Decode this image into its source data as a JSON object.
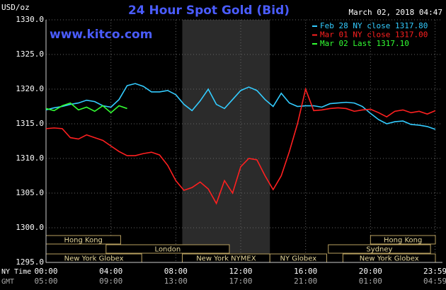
{
  "chart_data": {
    "type": "line",
    "title": "24 Hour Spot Gold (Bid)",
    "y_unit": "USD/oz",
    "site": "www.kitco.com",
    "timestamp": "March 02, 2018 04:47",
    "x_row_labels": [
      "NY Time",
      "GMT"
    ],
    "x": [
      0,
      0.5,
      1,
      1.5,
      2,
      2.5,
      3,
      3.5,
      4,
      4.5,
      5,
      5.5,
      6,
      6.5,
      7,
      7.5,
      8,
      8.5,
      9,
      9.5,
      10,
      10.5,
      11,
      11.5,
      12,
      12.5,
      13,
      13.5,
      14,
      14.5,
      15,
      15.5,
      16,
      16.5,
      17,
      17.5,
      18,
      18.5,
      19,
      19.5,
      20,
      20.5,
      21,
      21.5,
      22,
      22.5,
      23,
      23.5,
      24
    ],
    "series": [
      {
        "name": "Feb 28 NY close 1317.80",
        "color": "#33ccff",
        "values": [
          1317.0,
          1317.3,
          1317.5,
          1317.8,
          1318.0,
          1318.4,
          1318.2,
          1317.6,
          1317.4,
          1318.5,
          1320.5,
          1320.8,
          1320.4,
          1319.6,
          1319.6,
          1319.8,
          1319.2,
          1317.8,
          1316.9,
          1318.3,
          1320.0,
          1317.8,
          1317.2,
          1318.5,
          1319.8,
          1320.3,
          1319.8,
          1318.5,
          1317.5,
          1319.4,
          1318.0,
          1317.5,
          1317.6,
          1317.6,
          1317.4,
          1317.9,
          1318.0,
          1318.1,
          1318.0,
          1317.5,
          1316.5,
          1315.6,
          1315.0,
          1315.3,
          1315.4,
          1314.9,
          1314.8,
          1314.6,
          1314.2
        ]
      },
      {
        "name": "Mar 01 NY close 1317.00",
        "color": "#ff2020",
        "values": [
          1314.3,
          1314.4,
          1314.3,
          1313.0,
          1312.8,
          1313.4,
          1313.0,
          1312.6,
          1311.8,
          1311.0,
          1310.4,
          1310.4,
          1310.7,
          1310.9,
          1310.5,
          1309.0,
          1306.8,
          1305.4,
          1305.8,
          1306.6,
          1305.6,
          1303.5,
          1306.8,
          1305.0,
          1308.8,
          1310.0,
          1309.8,
          1307.5,
          1305.5,
          1307.5,
          1311.0,
          1315.0,
          1320.0,
          1316.9,
          1317.0,
          1317.2,
          1317.3,
          1317.2,
          1316.8,
          1317.0,
          1317.1,
          1316.6,
          1316.0,
          1316.8,
          1317.0,
          1316.6,
          1316.8,
          1316.4,
          1316.9
        ]
      },
      {
        "name": "Mar 02 Last 1317.10",
        "color": "#33ff33",
        "values": [
          1317.2,
          1316.9,
          1317.6,
          1318.0,
          1317.0,
          1317.4,
          1316.8,
          1317.6,
          1316.6,
          1317.6,
          1317.2,
          null,
          null,
          null,
          null,
          null,
          null,
          null,
          null,
          null,
          null,
          null,
          null,
          null,
          null,
          null,
          null,
          null,
          null,
          null,
          null,
          null,
          null,
          null,
          null,
          null,
          null,
          null,
          null,
          null,
          null,
          null,
          null,
          null,
          null,
          null,
          null,
          null,
          null
        ]
      }
    ],
    "xlim": [
      0,
      24
    ],
    "xticks": [
      {
        "value": 0,
        "label": "00:00"
      },
      {
        "value": 4,
        "label": "04:00"
      },
      {
        "value": 8,
        "label": "08:00"
      },
      {
        "value": 12,
        "label": "12:00"
      },
      {
        "value": 16,
        "label": "16:00"
      },
      {
        "value": 20,
        "label": "20:00"
      },
      {
        "value": 23.98,
        "label": "23:59"
      }
    ],
    "gmt_labels": [
      "05:00",
      "09:00",
      "13:00",
      "17:00",
      "21:00",
      "01:00",
      "04:59"
    ],
    "ylim": [
      1295,
      1330
    ],
    "yticks": [
      {
        "value": 1295,
        "label": "1295.0"
      },
      {
        "value": 1300,
        "label": "1300.0"
      },
      {
        "value": 1305,
        "label": "1305.0"
      },
      {
        "value": 1310,
        "label": "1310.0"
      },
      {
        "value": 1315,
        "label": "1315.0"
      },
      {
        "value": 1320,
        "label": "1320.0"
      },
      {
        "value": 1325,
        "label": "1325.0"
      },
      {
        "value": 1330,
        "label": "1330.0"
      }
    ],
    "grid": true,
    "legend": "top-right",
    "sessions": [
      {
        "label": "Hong Kong",
        "row": 0,
        "start": 0,
        "end": 4.6
      },
      {
        "label": "Hong Kong",
        "row": 0,
        "start": 20,
        "end": 24
      },
      {
        "label": "London",
        "row": 1,
        "start": 3.7,
        "end": 11.3
      },
      {
        "label": "Sydney",
        "row": 1,
        "start": 17.4,
        "end": 23.7
      },
      {
        "label": "New York Globex",
        "row": 2,
        "start": 0,
        "end": 5.9
      },
      {
        "label": "New York NYMEX",
        "row": 2,
        "start": 8.4,
        "end": 13.8,
        "shaded": true
      },
      {
        "label": "NY Globex",
        "row": 2,
        "start": 13.8,
        "end": 17.3
      },
      {
        "label": "New York Globex",
        "row": 2,
        "start": 18.3,
        "end": 24
      }
    ]
  }
}
